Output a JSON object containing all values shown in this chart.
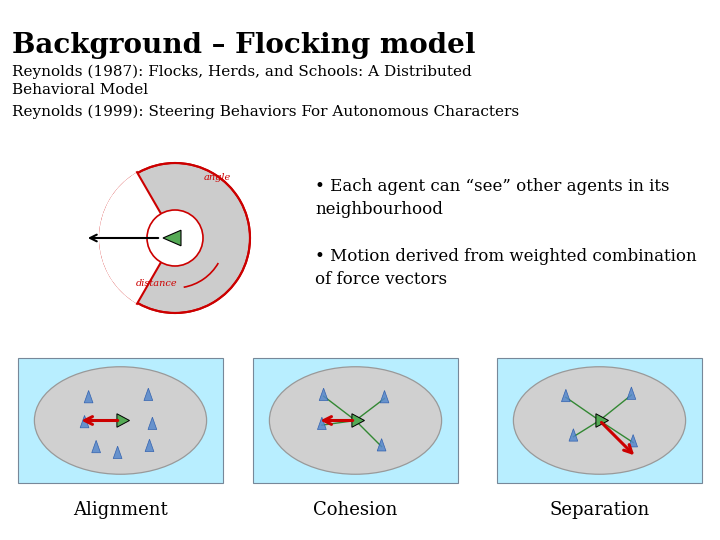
{
  "title": "Background – Flocking model",
  "ref1": "Reynolds (1987): Flocks, Herds, and Schools: A Distributed\nBehavioral Model",
  "ref2": "Reynolds (1999): Steering Behaviors For Autonomous Characters",
  "bullet1": "• Each agent can “see” other agents in its\nneighbourhood",
  "bullet2": "• Motion derived from weighted combination\nof force vectors",
  "label1": "Alignment",
  "label2": "Cohesion",
  "label3": "Separation",
  "bg_color": "#ffffff",
  "cyan_box": "#b8eeff",
  "ellipse_fill": "#d0d0d0",
  "agent_color": "#5588cc",
  "center_agent_color": "#55aa55",
  "arrow_color": "#cc0000",
  "line_color": "#338833",
  "red_color": "#cc0000",
  "diagram_gray": "#cccccc",
  "title_fontsize": 20,
  "ref_fontsize": 11,
  "bullet_fontsize": 12,
  "label_fontsize": 13
}
